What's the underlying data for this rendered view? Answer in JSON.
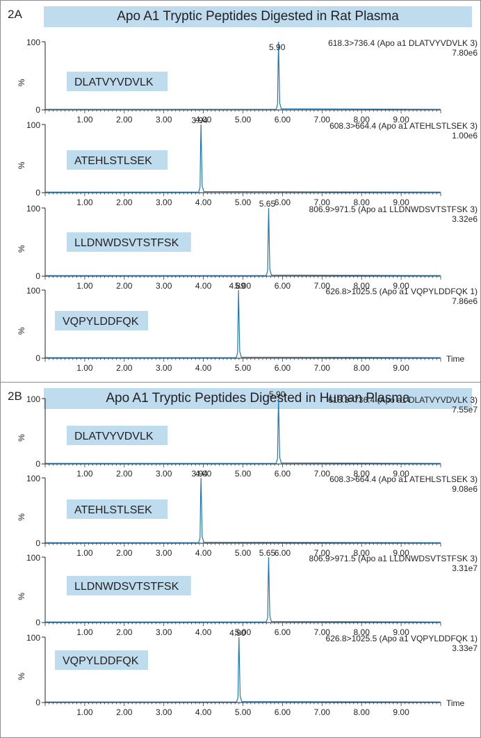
{
  "panels": [
    {
      "label": "2A",
      "title": "Apo A1 Tryptic Peptides Digested in Rat Plasma"
    },
    {
      "label": "2B",
      "title": "Apo A1 Tryptic Peptides Digested in Human Plasma"
    }
  ],
  "colors": {
    "trace": "#1f78b4",
    "label_box": "#bfdcef",
    "axis": "#231f20"
  },
  "chart_data": [
    {
      "type": "line",
      "panel": "2A",
      "peptide": "DLATVYVDVLK",
      "transition": "618.3>736.4 (Apo a1 DLATVYVDVLK 3)",
      "intensity": "7.80e6",
      "peak": {
        "x": 5.9,
        "label": "5.90"
      },
      "xlim": [
        0,
        10
      ],
      "ylim": [
        0,
        100
      ],
      "xticks": [
        "1.00",
        "2.00",
        "3.00",
        "4.00",
        "5.00",
        "6.00",
        "7.00",
        "8.00",
        "9.00"
      ],
      "yticks": [
        "100",
        "%",
        "0"
      ],
      "xlabel": ""
    },
    {
      "type": "line",
      "panel": "2A",
      "peptide": "ATEHLSTLSEK",
      "transition": "608.3>664.4 (Apo a1 ATEHLSTLSEK 3)",
      "intensity": "1.00e6",
      "peak": {
        "x": 3.94,
        "label": "3.94"
      },
      "xlim": [
        0,
        10
      ],
      "ylim": [
        0,
        100
      ],
      "xticks": [
        "1.00",
        "2.00",
        "3.00",
        "4.00",
        "5.00",
        "6.00",
        "7.00",
        "8.00",
        "9.00"
      ],
      "yticks": [
        "100",
        "%",
        "0"
      ],
      "xlabel": ""
    },
    {
      "type": "line",
      "panel": "2A",
      "peptide": "LLDNWDSVTSTFSK",
      "transition": "806.9>971.5 (Apo a1 LLDNWDSVTSTFSK 3)",
      "intensity": "3.32e6",
      "peak": {
        "x": 5.65,
        "label": "5.65"
      },
      "xlim": [
        0,
        10
      ],
      "ylim": [
        0,
        100
      ],
      "xticks": [
        "1.00",
        "2.00",
        "3.00",
        "4.00",
        "5.00",
        "6.00",
        "7.00",
        "8.00",
        "9.00"
      ],
      "yticks": [
        "100",
        "%",
        "0"
      ],
      "xlabel": ""
    },
    {
      "type": "line",
      "panel": "2A",
      "peptide": "VQPYLDDFQK",
      "transition": "626.8>1025.5 (Apo a1 VQPYLDDFQK 1)",
      "intensity": "7.86e6",
      "peak": {
        "x": 4.89,
        "label": "4.89"
      },
      "xlim": [
        0,
        10
      ],
      "ylim": [
        0,
        100
      ],
      "xticks": [
        "1.00",
        "2.00",
        "3.00",
        "4.00",
        "5.00",
        "6.00",
        "7.00",
        "8.00",
        "9.00"
      ],
      "yticks": [
        "100",
        "%",
        "0"
      ],
      "xlabel": "Time"
    },
    {
      "type": "line",
      "panel": "2B",
      "peptide": "DLATVYVDVLK",
      "transition": "618.3>736.4 (Apo a1 DLATVYVDVLK 3)",
      "intensity": "7.55e7",
      "peak": {
        "x": 5.9,
        "label": "5.90"
      },
      "xlim": [
        0,
        10
      ],
      "ylim": [
        0,
        100
      ],
      "xticks": [
        "1.00",
        "2.00",
        "3.00",
        "4.00",
        "5.00",
        "6.00",
        "7.00",
        "8.00",
        "9.00"
      ],
      "yticks": [
        "100",
        "%",
        "0"
      ],
      "xlabel": ""
    },
    {
      "type": "line",
      "panel": "2B",
      "peptide": "ATEHLSTLSEK",
      "transition": "608.3>664.4 (Apo a1 ATEHLSTLSEK 3)",
      "intensity": "9.08e6",
      "peak": {
        "x": 3.94,
        "label": "3.94"
      },
      "xlim": [
        0,
        10
      ],
      "ylim": [
        0,
        100
      ],
      "xticks": [
        "1.00",
        "2.00",
        "3.00",
        "4.00",
        "5.00",
        "6.00",
        "7.00",
        "8.00",
        "9.00"
      ],
      "yticks": [
        "100",
        "%",
        "0"
      ],
      "xlabel": ""
    },
    {
      "type": "line",
      "panel": "2B",
      "peptide": "LLDNWDSVTSTFSK",
      "transition": "806.9>971.5 (Apo a1 LLDNWDSVTSTFSK 3)",
      "intensity": "3.31e7",
      "peak": {
        "x": 5.65,
        "label": "5.65"
      },
      "xlim": [
        0,
        10
      ],
      "ylim": [
        0,
        100
      ],
      "xticks": [
        "1.00",
        "2.00",
        "3.00",
        "4.00",
        "5.00",
        "6.00",
        "7.00",
        "8.00",
        "9.00"
      ],
      "yticks": [
        "100",
        "%",
        "0"
      ],
      "xlabel": ""
    },
    {
      "type": "line",
      "panel": "2B",
      "peptide": "VQPYLDDFQK",
      "transition": "626.8>1025.5 (Apo a1 VQPYLDDFQK 1)",
      "intensity": "3.33e7",
      "peak": {
        "x": 4.9,
        "label": "4.90"
      },
      "xlim": [
        0,
        10
      ],
      "ylim": [
        0,
        100
      ],
      "xticks": [
        "1.00",
        "2.00",
        "3.00",
        "4.00",
        "5.00",
        "6.00",
        "7.00",
        "8.00",
        "9.00"
      ],
      "yticks": [
        "100",
        "%",
        "0"
      ],
      "xlabel": "Time"
    }
  ]
}
